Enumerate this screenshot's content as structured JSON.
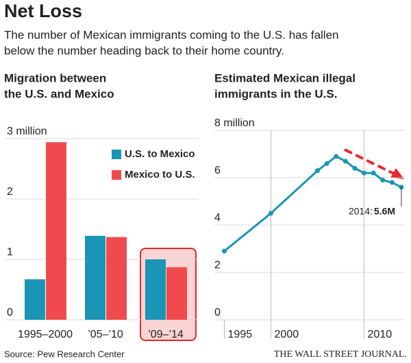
{
  "title": "Net Loss",
  "subtitle": [
    "The number of Mexican immigrants coming to the U.S. has fallen",
    "below the number heading back to their home country."
  ],
  "source": "Source: Pew Research Center",
  "publisher": "THE WALL STREET JOURNAL.",
  "chart_data": [
    {
      "type": "bar",
      "title": [
        "Migration between",
        "the U.S. and Mexico"
      ],
      "categories": [
        "1995–2000",
        "’05–’10",
        "’09–’14"
      ],
      "series": [
        {
          "name": "U.S. to Mexico",
          "color": "#1a95b5",
          "values": [
            0.67,
            1.39,
            1.0
          ]
        },
        {
          "name": "Mexico to U.S.",
          "color": "#f04a4f",
          "values": [
            2.94,
            1.37,
            0.87
          ]
        }
      ],
      "ylim": [
        0,
        3
      ],
      "yticks": [
        0,
        1,
        2,
        {
          "value": 3,
          "label": "3 million"
        }
      ],
      "grid": true
    },
    {
      "type": "line",
      "title": [
        "Estimated Mexican illegal",
        "immigrants in the U.S."
      ],
      "x": [
        1995,
        2000,
        2005,
        2006,
        2007,
        2008,
        2009,
        2010,
        2011,
        2012,
        2013,
        2014
      ],
      "series": [
        {
          "name": "Mexican illegal immigrants",
          "color": "#1a95b5",
          "values": [
            2.9,
            4.5,
            6.3,
            6.6,
            6.9,
            6.7,
            6.4,
            6.2,
            6.2,
            5.9,
            5.8,
            5.6
          ]
        }
      ],
      "xlim": [
        1994.3,
        2014.3
      ],
      "xticks": [
        1995,
        2000,
        2010
      ],
      "ylim": [
        0,
        8
      ],
      "yticks": [
        0,
        2,
        4,
        6,
        {
          "value": 8,
          "label": "8 million"
        }
      ],
      "grid": true,
      "annotation": {
        "label": "2014:",
        "value": "5.6M"
      }
    }
  ]
}
